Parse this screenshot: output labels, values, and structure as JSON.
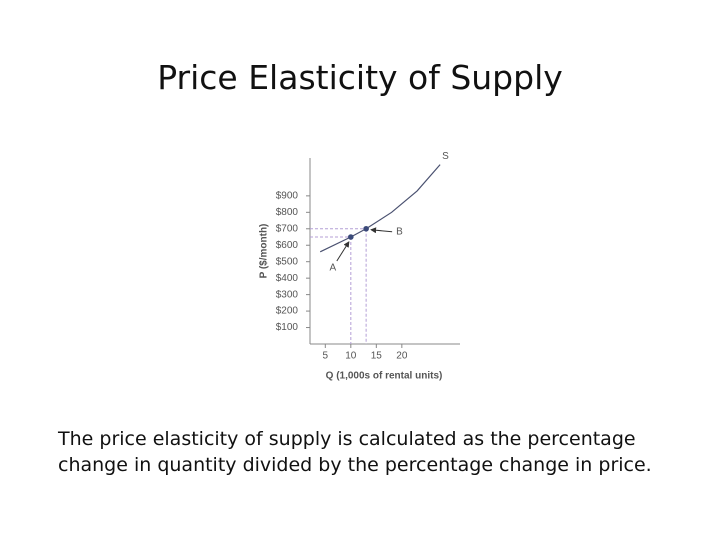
{
  "title": "Price Elasticity of Supply",
  "chart_data": {
    "type": "line",
    "xlabel": "Q (1,000s of rental units)",
    "ylabel": "P ($/month)",
    "xlim": [
      2,
      31.4
    ],
    "ylim": [
      0,
      1130
    ],
    "xticks": [
      5,
      10,
      15,
      20
    ],
    "yticks": [
      {
        "value": 100,
        "label": "$100"
      },
      {
        "value": 200,
        "label": "$200"
      },
      {
        "value": 300,
        "label": "$300"
      },
      {
        "value": 400,
        "label": "$400"
      },
      {
        "value": 500,
        "label": "$500"
      },
      {
        "value": 600,
        "label": "$600"
      },
      {
        "value": 700,
        "label": "$700"
      },
      {
        "value": 800,
        "label": "$800"
      },
      {
        "value": 900,
        "label": "$900"
      }
    ],
    "series": [
      {
        "name": "S",
        "color": "#4a5170",
        "x": [
          4,
          10,
          13,
          18,
          23,
          27.5
        ],
        "values": [
          560,
          650,
          700,
          800,
          930,
          1090
        ]
      }
    ],
    "points": [
      {
        "label": "A",
        "x": 10,
        "y": 650
      },
      {
        "label": "B",
        "x": 13,
        "y": 700
      }
    ],
    "point_color": "#3b4a7a",
    "guide_color": "#b49fd6"
  },
  "body": "The price elasticity of supply is calculated as the percentage change in quantity divided by the percentage change in price."
}
